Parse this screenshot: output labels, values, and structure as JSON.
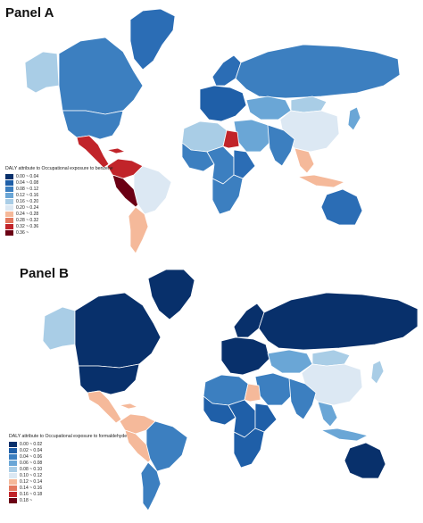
{
  "panels": [
    {
      "title": "Panel A",
      "legend_title": "DALY attribute to Occupational exposure to benzene",
      "legend": [
        {
          "label": "0.00 ~ 0.04",
          "color": "#08306b"
        },
        {
          "label": "0.04 ~ 0.08",
          "color": "#1f5fa8"
        },
        {
          "label": "0.08 ~ 0.12",
          "color": "#3c7fc0"
        },
        {
          "label": "0.12 ~ 0.16",
          "color": "#6aa6d6"
        },
        {
          "label": "0.16 ~ 0.20",
          "color": "#a9cde6"
        },
        {
          "label": "0.20 ~ 0.24",
          "color": "#dce8f3"
        },
        {
          "label": "0.24 ~ 0.28",
          "color": "#f5b99a"
        },
        {
          "label": "0.28 ~ 0.32",
          "color": "#e3785e"
        },
        {
          "label": "0.32 ~ 0.36",
          "color": "#c1242a"
        },
        {
          "label": "0.36 ~",
          "color": "#6b0014"
        }
      ],
      "colors": {
        "greenland": "#2b6db5",
        "alaska": "#a9cde6",
        "canada": "#3c7fc0",
        "usa": "#3c7fc0",
        "central_america": "#c1242a",
        "caribbean": "#c1242a",
        "colombia_venezuela": "#c1242a",
        "peru": "#6b0014",
        "brazil": "#dce8f3",
        "southern_cone": "#f5b99a",
        "europe": "#1f5fa8",
        "scandinavia": "#2b6db5",
        "russia": "#3c7fc0",
        "central_asia": "#6aa6d6",
        "mongolia": "#a9cde6",
        "china": "#dce8f3",
        "middle_east": "#6aa6d6",
        "egypt": "#c1242a",
        "north_africa": "#a9cde6",
        "west_africa": "#3c7fc0",
        "central_africa": "#3c7fc0",
        "east_africa": "#2b6db5",
        "southern_africa": "#3c7fc0",
        "india": "#3c7fc0",
        "southeast_asia": "#f5b99a",
        "indonesia": "#f5b99a",
        "japan": "#6aa6d6",
        "australia": "#2b6db5"
      }
    },
    {
      "title": "Panel B",
      "legend_title": "DALY attribute to Occupational exposure to formaldehyde",
      "legend": [
        {
          "label": "0.00 ~ 0.02",
          "color": "#08306b"
        },
        {
          "label": "0.02 ~ 0.04",
          "color": "#1f5fa8"
        },
        {
          "label": "0.04 ~ 0.06",
          "color": "#3c7fc0"
        },
        {
          "label": "0.06 ~ 0.08",
          "color": "#6aa6d6"
        },
        {
          "label": "0.08 ~ 0.10",
          "color": "#a9cde6"
        },
        {
          "label": "0.10 ~ 0.12",
          "color": "#dce8f3"
        },
        {
          "label": "0.12 ~ 0.14",
          "color": "#f5b99a"
        },
        {
          "label": "0.14 ~ 0.16",
          "color": "#e3785e"
        },
        {
          "label": "0.16 ~ 0.18",
          "color": "#c1242a"
        },
        {
          "label": "0.18 ~",
          "color": "#6b0014"
        }
      ],
      "colors": {
        "greenland": "#08306b",
        "alaska": "#a9cde6",
        "canada": "#08306b",
        "usa": "#08306b",
        "central_america": "#f5b99a",
        "caribbean": "#f5b99a",
        "colombia_venezuela": "#f5b99a",
        "peru": "#f5b99a",
        "brazil": "#3c7fc0",
        "southern_cone": "#3c7fc0",
        "europe": "#08306b",
        "scandinavia": "#08306b",
        "russia": "#08306b",
        "central_asia": "#6aa6d6",
        "mongolia": "#a9cde6",
        "china": "#dce8f3",
        "middle_east": "#3c7fc0",
        "egypt": "#f5b99a",
        "north_africa": "#3c7fc0",
        "west_africa": "#1f5fa8",
        "central_africa": "#1f5fa8",
        "east_africa": "#1f5fa8",
        "southern_africa": "#1f5fa8",
        "india": "#3c7fc0",
        "southeast_asia": "#6aa6d6",
        "indonesia": "#6aa6d6",
        "japan": "#a9cde6",
        "australia": "#08306b"
      }
    }
  ]
}
